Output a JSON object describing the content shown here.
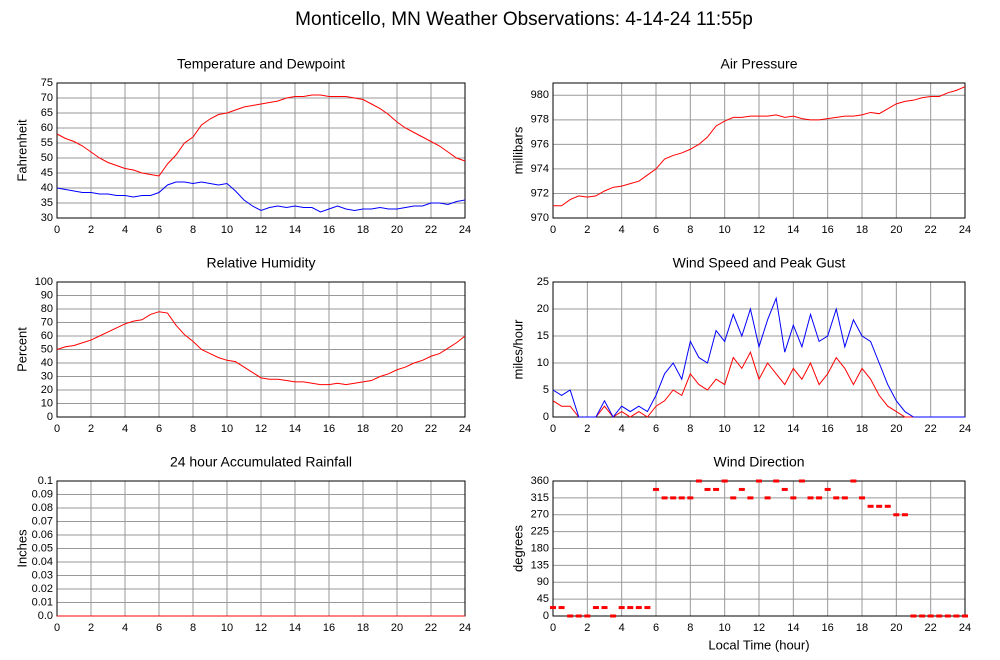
{
  "title": "Monticello, MN Weather Observations: 4-14-24 11:55p",
  "chart_data": [
    {
      "type": "line",
      "title": "Temperature and Dewpoint",
      "ylabel": "Fahrenheit",
      "x": [
        0,
        0.5,
        1,
        1.5,
        2,
        2.5,
        3,
        3.5,
        4,
        4.5,
        5,
        5.5,
        6,
        6.5,
        7,
        7.5,
        8,
        8.5,
        9,
        9.5,
        10,
        10.5,
        11,
        11.5,
        12,
        12.5,
        13,
        13.5,
        14,
        14.5,
        15,
        15.5,
        16,
        16.5,
        17,
        17.5,
        18,
        18.5,
        19,
        19.5,
        20,
        20.5,
        21,
        21.5,
        22,
        22.5,
        23,
        23.5,
        24
      ],
      "series": [
        {
          "name": "Temperature",
          "color": "#ff0000",
          "values": [
            58,
            56.5,
            55.5,
            54,
            52,
            50,
            48.5,
            47.5,
            46.5,
            46,
            45,
            44.5,
            44,
            48,
            51,
            55,
            57,
            61,
            63,
            64.5,
            65,
            66,
            67,
            67.5,
            68,
            68.5,
            69,
            70,
            70.5,
            70.5,
            71,
            71,
            70.5,
            70.5,
            70.5,
            70,
            69.5,
            68,
            66.5,
            64.5,
            62,
            60,
            58.5,
            57,
            55.5,
            54,
            52,
            50,
            49
          ]
        },
        {
          "name": "Dewpoint",
          "color": "#0000ff",
          "values": [
            40,
            39.5,
            39,
            38.5,
            38.5,
            38,
            38,
            37.5,
            37.5,
            37,
            37.5,
            37.5,
            38.5,
            41,
            42,
            42,
            41.5,
            42,
            41.5,
            41,
            41.5,
            39,
            36,
            34,
            32.5,
            33.5,
            34,
            33.5,
            34,
            33.5,
            33.5,
            32,
            33,
            34,
            33,
            32.5,
            33,
            33,
            33.5,
            33,
            33,
            33.5,
            34,
            34,
            35,
            35,
            34.5,
            35.5,
            36
          ]
        }
      ],
      "xlim": [
        0,
        24
      ],
      "xticks": [
        0,
        2,
        4,
        6,
        8,
        10,
        12,
        14,
        16,
        18,
        20,
        22,
        24
      ],
      "ylim": [
        30,
        75
      ],
      "yticks": [
        30,
        35,
        40,
        45,
        50,
        55,
        60,
        65,
        70,
        75
      ],
      "grid": true
    },
    {
      "type": "line",
      "title": "Air Pressure",
      "ylabel": "millibars",
      "x": [
        0,
        0.5,
        1,
        1.5,
        2,
        2.5,
        3,
        3.5,
        4,
        4.5,
        5,
        5.5,
        6,
        6.5,
        7,
        7.5,
        8,
        8.5,
        9,
        9.5,
        10,
        10.5,
        11,
        11.5,
        12,
        12.5,
        13,
        13.5,
        14,
        14.5,
        15,
        15.5,
        16,
        16.5,
        17,
        17.5,
        18,
        18.5,
        19,
        19.5,
        20,
        20.5,
        21,
        21.5,
        22,
        22.5,
        23,
        23.5,
        24
      ],
      "series": [
        {
          "name": "Pressure",
          "color": "#ff0000",
          "values": [
            971,
            971,
            971.5,
            971.8,
            971.7,
            971.8,
            972.2,
            972.5,
            972.6,
            972.8,
            973,
            973.5,
            974,
            974.8,
            975.1,
            975.3,
            975.6,
            976,
            976.6,
            977.5,
            977.9,
            978.2,
            978.2,
            978.3,
            978.3,
            978.3,
            978.4,
            978.2,
            978.3,
            978.1,
            978,
            978,
            978.1,
            978.2,
            978.3,
            978.3,
            978.4,
            978.6,
            978.5,
            978.9,
            979.3,
            979.5,
            979.6,
            979.8,
            979.9,
            979.9,
            980.2,
            980.4,
            980.7
          ]
        }
      ],
      "xlim": [
        0,
        24
      ],
      "xticks": [
        0,
        2,
        4,
        6,
        8,
        10,
        12,
        14,
        16,
        18,
        20,
        22,
        24
      ],
      "ylim": [
        970,
        981
      ],
      "yticks": [
        970,
        972,
        974,
        976,
        978,
        980
      ],
      "grid": true
    },
    {
      "type": "line",
      "title": "Relative Humidity",
      "ylabel": "Percent",
      "x": [
        0,
        0.5,
        1,
        1.5,
        2,
        2.5,
        3,
        3.5,
        4,
        4.5,
        5,
        5.5,
        6,
        6.5,
        7,
        7.5,
        8,
        8.5,
        9,
        9.5,
        10,
        10.5,
        11,
        11.5,
        12,
        12.5,
        13,
        13.5,
        14,
        14.5,
        15,
        15.5,
        16,
        16.5,
        17,
        17.5,
        18,
        18.5,
        19,
        19.5,
        20,
        20.5,
        21,
        21.5,
        22,
        22.5,
        23,
        23.5,
        24
      ],
      "series": [
        {
          "name": "Relative Humidity",
          "color": "#ff0000",
          "values": [
            50,
            52,
            53,
            55,
            57,
            60,
            63,
            66,
            69,
            71,
            72,
            76,
            78,
            77,
            68,
            61,
            56,
            50,
            47,
            44,
            42,
            41,
            37,
            33,
            29,
            28,
            28,
            27,
            26,
            26,
            25,
            24,
            24,
            25,
            24,
            25,
            26,
            27,
            30,
            32,
            35,
            37,
            40,
            42,
            45,
            47,
            51,
            55,
            60
          ]
        }
      ],
      "xlim": [
        0,
        24
      ],
      "xticks": [
        0,
        2,
        4,
        6,
        8,
        10,
        12,
        14,
        16,
        18,
        20,
        22,
        24
      ],
      "ylim": [
        0,
        100
      ],
      "yticks": [
        0,
        10,
        20,
        30,
        40,
        50,
        60,
        70,
        80,
        90,
        100
      ],
      "grid": true
    },
    {
      "type": "line",
      "title": "Wind Speed and Peak Gust",
      "ylabel": "miles/hour",
      "x": [
        0,
        0.5,
        1,
        1.5,
        2,
        2.5,
        3,
        3.5,
        4,
        4.5,
        5,
        5.5,
        6,
        6.5,
        7,
        7.5,
        8,
        8.5,
        9,
        9.5,
        10,
        10.5,
        11,
        11.5,
        12,
        12.5,
        13,
        13.5,
        14,
        14.5,
        15,
        15.5,
        16,
        16.5,
        17,
        17.5,
        18,
        18.5,
        19,
        19.5,
        20,
        20.5,
        21,
        21.5,
        22,
        22.5,
        23,
        23.5,
        24
      ],
      "series": [
        {
          "name": "Wind Speed",
          "color": "#ff0000",
          "values": [
            3,
            2,
            2,
            0,
            0,
            0,
            2,
            0,
            1,
            0,
            1,
            0,
            2,
            3,
            5,
            4,
            8,
            6,
            5,
            7,
            6,
            11,
            9,
            12,
            7,
            10,
            8,
            6,
            9,
            7,
            10,
            6,
            8,
            11,
            9,
            6,
            9,
            7,
            4,
            2,
            1,
            0,
            0,
            0,
            0,
            0,
            0,
            0,
            0
          ]
        },
        {
          "name": "Peak Gust",
          "color": "#0000ff",
          "values": [
            5,
            4,
            5,
            0,
            0,
            0,
            3,
            0,
            2,
            1,
            2,
            1,
            4,
            8,
            10,
            7,
            14,
            11,
            10,
            16,
            14,
            19,
            15,
            20,
            13,
            18,
            22,
            12,
            17,
            13,
            19,
            14,
            15,
            20,
            13,
            18,
            15,
            14,
            10,
            6,
            3,
            1,
            0,
            0,
            0,
            0,
            0,
            0,
            0
          ]
        }
      ],
      "xlim": [
        0,
        24
      ],
      "xticks": [
        0,
        2,
        4,
        6,
        8,
        10,
        12,
        14,
        16,
        18,
        20,
        22,
        24
      ],
      "ylim": [
        0,
        25
      ],
      "yticks": [
        0,
        5,
        10,
        15,
        20,
        25
      ],
      "grid": true
    },
    {
      "type": "line",
      "title": "24 hour Accumulated Rainfall",
      "ylabel": "Inches",
      "x": [
        0,
        24
      ],
      "series": [
        {
          "name": "Rainfall",
          "color": "#ff0000",
          "values": [
            0,
            0
          ]
        }
      ],
      "xlim": [
        0,
        24
      ],
      "xticks": [
        0,
        2,
        4,
        6,
        8,
        10,
        12,
        14,
        16,
        18,
        20,
        22,
        24
      ],
      "ylim": [
        0,
        0.1
      ],
      "yticks": [
        {
          "value": 0,
          "label": "0.0"
        },
        0.01,
        0.02,
        0.03,
        0.04,
        0.05,
        0.06,
        0.07,
        0.08,
        0.09,
        0.1
      ],
      "grid": true
    },
    {
      "type": "scatter",
      "title": "Wind Direction",
      "ylabel": "degrees",
      "xlabel": "Local Time (hour)",
      "x": [
        0,
        0.5,
        1,
        1.5,
        2,
        2.5,
        3,
        3.5,
        4,
        4.5,
        5,
        5.5,
        6,
        6.5,
        7,
        7.5,
        8,
        8.5,
        9,
        9.5,
        10,
        10.5,
        11,
        11.5,
        12,
        12.5,
        13,
        13.5,
        14,
        14.5,
        15,
        15.5,
        16,
        16.5,
        17,
        17.5,
        18,
        18.5,
        19,
        19.5,
        20,
        20.5,
        21,
        21.5,
        22,
        22.5,
        23,
        23.5,
        24
      ],
      "series": [
        {
          "name": "Wind Direction",
          "color": "#ff0000",
          "values": [
            22.5,
            22.5,
            0,
            0,
            0,
            22.5,
            22.5,
            0,
            22.5,
            22.5,
            22.5,
            22.5,
            337.5,
            315,
            315,
            315,
            315,
            360,
            337.5,
            337.5,
            360,
            315,
            337.5,
            315,
            360,
            315,
            360,
            337.5,
            315,
            360,
            315,
            315,
            337.5,
            315,
            315,
            360,
            315,
            292.5,
            292.5,
            292.5,
            270,
            270,
            0,
            0,
            0,
            0,
            0,
            0,
            0
          ]
        }
      ],
      "xlim": [
        0,
        24
      ],
      "xticks": [
        0,
        2,
        4,
        6,
        8,
        10,
        12,
        14,
        16,
        18,
        20,
        22,
        24
      ],
      "ylim": [
        0,
        360
      ],
      "yticks": [
        0,
        45,
        90,
        135,
        180,
        225,
        270,
        315,
        360
      ],
      "grid": true
    }
  ]
}
